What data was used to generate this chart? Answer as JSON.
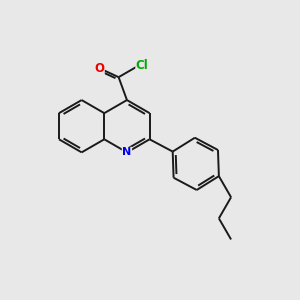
{
  "background_color": "#e8e8e8",
  "bond_color": "#1a1a1a",
  "N_color": "#0000ee",
  "O_color": "#ee0000",
  "Cl_color": "#00aa00",
  "bond_width": 1.4,
  "figsize": [
    3.0,
    3.0
  ],
  "dpi": 100,
  "xlim": [
    0,
    10
  ],
  "ylim": [
    0,
    10
  ]
}
